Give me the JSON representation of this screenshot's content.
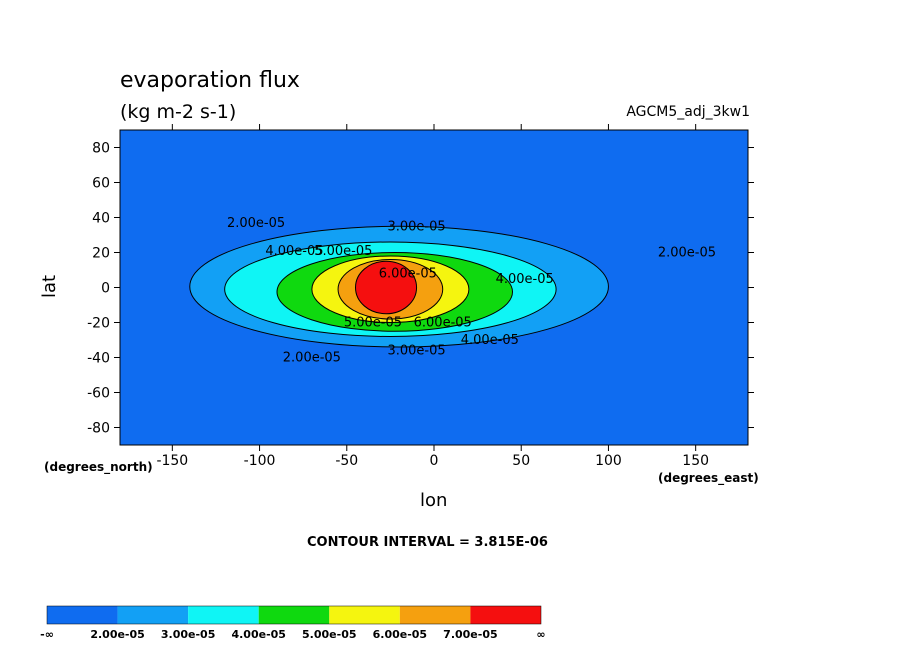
{
  "chart_data": {
    "type": "heatmap",
    "title": "evaporation flux",
    "units": "(kg m-2 s-1)",
    "dataset": "AGCM5_adj_3kw1",
    "xlabel": "lon",
    "ylabel": "lat",
    "x_units": "(degrees_east)",
    "y_units": "(degrees_north)",
    "xlim": [
      -180,
      180
    ],
    "ylim": [
      -90,
      90
    ],
    "x_ticks": [
      -150,
      -100,
      -50,
      0,
      50,
      100,
      150
    ],
    "y_ticks": [
      80,
      60,
      40,
      20,
      0,
      -20,
      -40,
      -60,
      -80
    ],
    "contour_interval": "CONTOUR INTERVAL = 3.815E-06",
    "grid": false,
    "colorbar": {
      "colors": [
        "#0f6cf0",
        "#12a0f5",
        "#0ff5f5",
        "#0fd90f",
        "#f5f50f",
        "#f5a00f",
        "#f50f0f"
      ],
      "labels": [
        "-∞",
        "2.00e-05",
        "3.00e-05",
        "4.00e-05",
        "5.00e-05",
        "6.00e-05",
        "7.00e-05",
        "∞"
      ]
    },
    "contour_labels": [
      {
        "text": "2.00e-05",
        "lon": -102,
        "lat": 37
      },
      {
        "text": "3.00e-05",
        "lon": -10,
        "lat": 35
      },
      {
        "text": "2.00e-05",
        "lon": 145,
        "lat": 20
      },
      {
        "text": "4.00e-05",
        "lon": -80,
        "lat": 21
      },
      {
        "text": "5.00e-05",
        "lon": -52,
        "lat": 21
      },
      {
        "text": "6.00e-05",
        "lon": -15,
        "lat": 8
      },
      {
        "text": "4.00e-05",
        "lon": 52,
        "lat": 5
      },
      {
        "text": "5.00e-05",
        "lon": -35,
        "lat": -20
      },
      {
        "text": "6.00e-05",
        "lon": 5,
        "lat": -20
      },
      {
        "text": "4.00e-05",
        "lon": 32,
        "lat": -30
      },
      {
        "text": "3.00e-05",
        "lon": -10,
        "lat": -36
      },
      {
        "text": "2.00e-05",
        "lon": -70,
        "lat": -40
      }
    ],
    "regions": [
      {
        "level": 1,
        "lon": [
          -180,
          180
        ],
        "lat": [
          -90,
          90
        ]
      },
      {
        "level": 2,
        "lon": [
          -140,
          100
        ],
        "lat": [
          -34,
          35
        ]
      },
      {
        "level": 3,
        "lon": [
          -120,
          70
        ],
        "lat": [
          -28,
          26
        ]
      },
      {
        "level": 4,
        "lon": [
          -90,
          45
        ],
        "lat": [
          -25,
          20
        ]
      },
      {
        "level": 5,
        "lon": [
          -70,
          20
        ],
        "lat": [
          -20,
          18
        ]
      },
      {
        "level": 6,
        "lon": [
          -55,
          5
        ],
        "lat": [
          -18,
          16
        ]
      },
      {
        "level": 7,
        "lon": [
          -45,
          -10
        ],
        "lat": [
          -15,
          15
        ]
      }
    ]
  }
}
